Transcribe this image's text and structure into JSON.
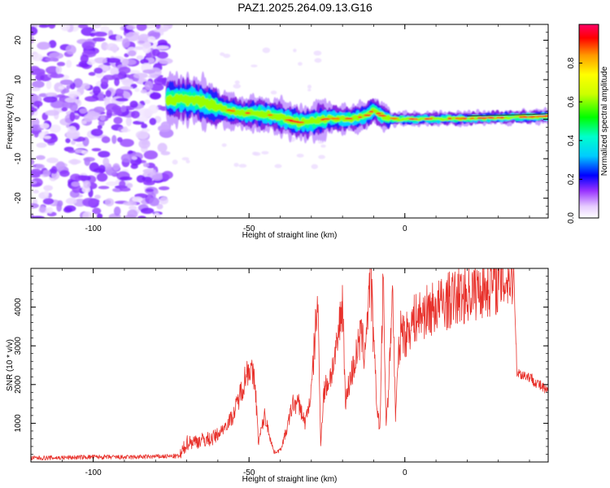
{
  "title": "PAZ1.2025.264.09.13.G16",
  "colors": {
    "snr_line": "#e8312b",
    "axis": "#000000",
    "background": "#ffffff"
  },
  "chart_data": [
    {
      "type": "heatmap",
      "xlabel": "Height of straight line (km)",
      "ylabel": "Frequency (Hz)",
      "xlim": [
        -120,
        46
      ],
      "ylim": [
        -25,
        24
      ],
      "xticks": [
        -100,
        -50,
        0
      ],
      "xtick_labels": [
        "-100",
        "-50",
        "0"
      ],
      "yticks": [
        -20,
        -10,
        0,
        10,
        20
      ],
      "ytick_labels": [
        "-20",
        "-10",
        "0",
        "10",
        "20"
      ],
      "colorbar": {
        "label": "Normalized spectral amplitude",
        "range": [
          0,
          1
        ],
        "ticks": [
          0.0,
          0.2,
          0.4,
          0.6,
          0.8
        ],
        "tick_labels": [
          "0.0",
          "0.2",
          "0.4",
          "0.6",
          "0.8"
        ]
      },
      "noise_region_km": [
        -120,
        -76
      ],
      "ridge": {
        "description": "frequency centre of the spectral ridge (Hz) vs height (km)",
        "x": [
          -76,
          -72,
          -68,
          -64,
          -60,
          -56,
          -52,
          -48,
          -44,
          -40,
          -36,
          -32,
          -28,
          -24,
          -20,
          -16,
          -12,
          -10,
          -8,
          -6,
          -4,
          0,
          10,
          20,
          30,
          40,
          46
        ],
        "y": [
          5,
          5,
          5,
          4,
          3,
          2.2,
          1.6,
          1.5,
          1.2,
          0.5,
          -0.5,
          -1,
          -0.3,
          0.2,
          0.1,
          0.2,
          1,
          2.5,
          1.2,
          0.4,
          0.2,
          0,
          0.1,
          0.2,
          0.4,
          0.6,
          0.8
        ]
      }
    },
    {
      "type": "line",
      "xlabel": "Height of straight line (km)",
      "ylabel": "SNR (10 * v/v)",
      "xlim": [
        -120,
        46
      ],
      "ylim": [
        0,
        5000
      ],
      "xticks": [
        -100,
        -50,
        0
      ],
      "xtick_labels": [
        "-100",
        "-50",
        "0"
      ],
      "yticks": [
        1000,
        2000,
        3000,
        4000
      ],
      "ytick_labels": [
        "1000",
        "2000",
        "3000",
        "4000"
      ],
      "series": [
        {
          "name": "SNR",
          "x": [
            -120,
            -110,
            -100,
            -90,
            -80,
            -72,
            -70,
            -62,
            -60,
            -55,
            -50,
            -48,
            -47,
            -45,
            -42,
            -40,
            -38,
            -36,
            -34,
            -32,
            -30,
            -28,
            -27,
            -26,
            -24,
            -22,
            -20,
            -19,
            -18,
            -16,
            -14,
            -13,
            -12,
            -11,
            -10,
            -9,
            -8,
            -7,
            -6,
            -5,
            -4,
            -3,
            -2,
            -1,
            0,
            2,
            5,
            10,
            15,
            20,
            25,
            30,
            32,
            34,
            35,
            36,
            40,
            46
          ],
          "y": [
            100,
            110,
            130,
            120,
            140,
            150,
            500,
            600,
            700,
            1200,
            2500,
            2000,
            500,
            1200,
            250,
            300,
            800,
            1500,
            1500,
            1000,
            1800,
            4250,
            500,
            1800,
            2200,
            2800,
            4200,
            1500,
            2000,
            2600,
            3300,
            2800,
            3800,
            4900,
            3000,
            1500,
            800,
            4700,
            1000,
            2200,
            4700,
            1200,
            2700,
            3600,
            3200,
            3600,
            3800,
            4000,
            4200,
            4350,
            4500,
            4650,
            4700,
            4800,
            4800,
            2300,
            2200,
            1800
          ]
        }
      ]
    }
  ]
}
